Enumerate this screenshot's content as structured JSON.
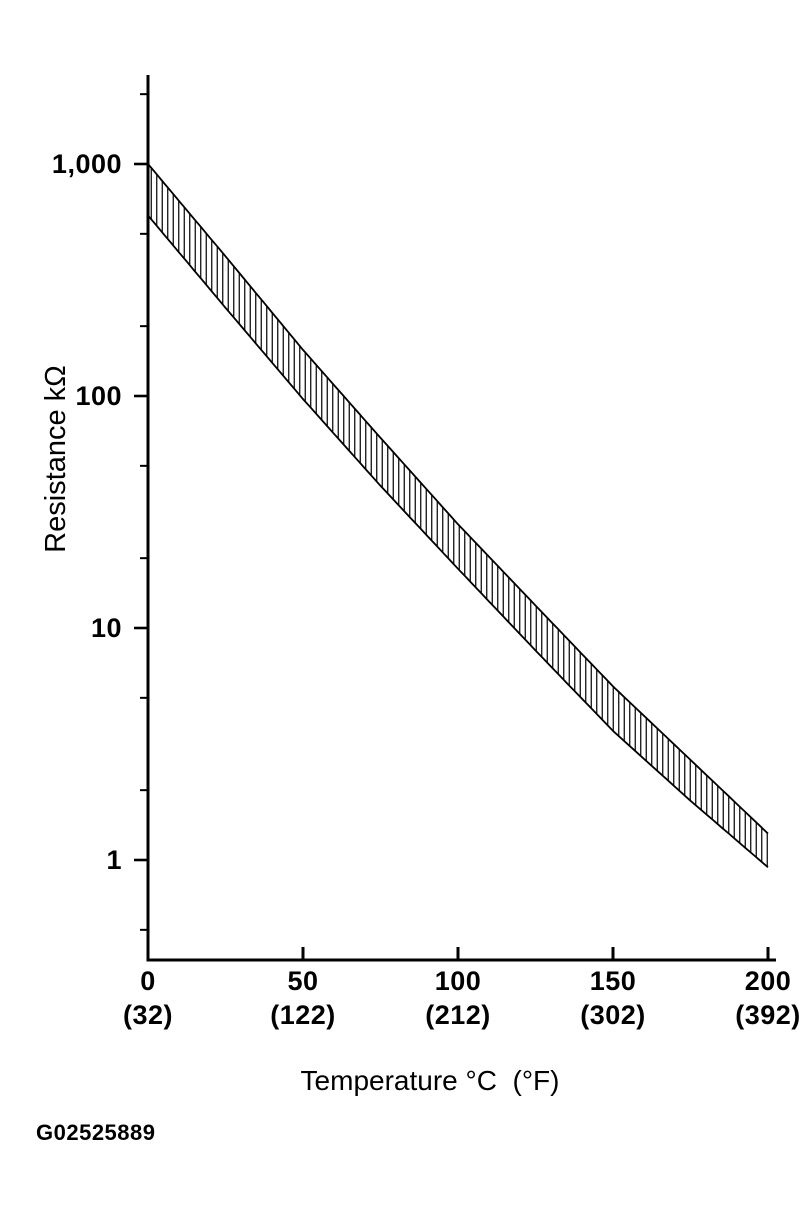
{
  "figure": {
    "code": "G02525889",
    "background": "#ffffff",
    "ink": "#000000"
  },
  "chart_data": {
    "type": "area",
    "title": "",
    "xlabel": "Temperature °C  (°F)",
    "ylabel": "Resistance kΩ",
    "legend": "none",
    "grid": false,
    "x_axis": {
      "range": [
        0,
        200
      ],
      "unit": "°C (°F)",
      "ticks": [
        {
          "value": 0,
          "celsius": "0",
          "fahrenheit": "(32)"
        },
        {
          "value": 50,
          "celsius": "50",
          "fahrenheit": "(122)"
        },
        {
          "value": 100,
          "celsius": "100",
          "fahrenheit": "(212)"
        },
        {
          "value": 150,
          "celsius": "150",
          "fahrenheit": "(302)"
        },
        {
          "value": 200,
          "celsius": "200",
          "fahrenheit": "(392)"
        }
      ]
    },
    "y_axis": {
      "scale": "log",
      "unit": "kΩ",
      "range_shown": [
        0.4,
        2400
      ],
      "ticks": [
        {
          "value": 1000,
          "label": "1,000"
        },
        {
          "value": 100,
          "label": "100"
        },
        {
          "value": 10,
          "label": "10"
        },
        {
          "value": 1,
          "label": "1"
        }
      ],
      "minor_tick_values": [
        2000,
        500,
        200,
        50,
        20,
        5,
        2,
        0.5
      ]
    },
    "band": {
      "style": "vertical-hatch",
      "description": "Tolerance band between upper and lower resistance limits",
      "x": [
        0,
        25,
        50,
        75,
        100,
        125,
        150,
        175,
        200
      ],
      "series": [
        {
          "name": "upper_limit_kohm",
          "values": [
            1000,
            400,
            158,
            66,
            28,
            12.5,
            5.6,
            2.7,
            1.3
          ]
        },
        {
          "name": "lower_limit_kohm",
          "values": [
            600,
            240,
            97,
            41,
            18,
            8.0,
            3.6,
            1.8,
            0.93
          ]
        }
      ]
    }
  }
}
